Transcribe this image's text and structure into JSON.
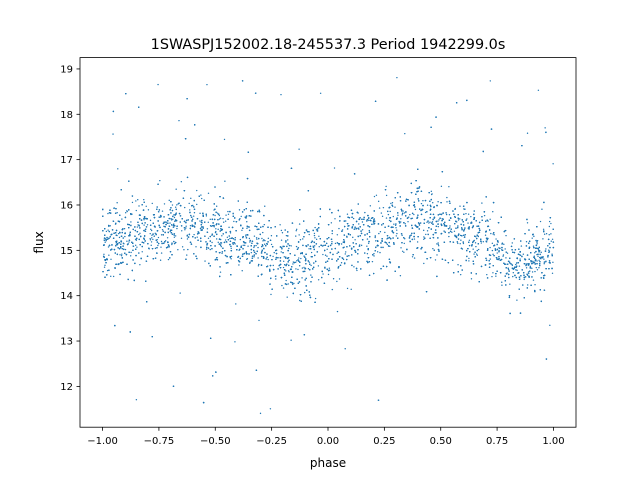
{
  "chart_data": {
    "type": "scatter",
    "title": "1SWASPJ152002.18-245537.3 Period 1942299.0s",
    "xlabel": "phase",
    "ylabel": "flux",
    "xlim": [
      -1.1,
      1.1
    ],
    "ylim": [
      11.1,
      19.25
    ],
    "x_ticks": [
      -1.0,
      -0.75,
      -0.5,
      -0.25,
      0.0,
      0.25,
      0.5,
      0.75,
      1.0
    ],
    "x_tick_labels": [
      "−1.00",
      "−0.75",
      "−0.50",
      "−0.25",
      "0.00",
      "0.25",
      "0.50",
      "0.75",
      "1.00"
    ],
    "y_ticks": [
      12,
      13,
      14,
      15,
      16,
      17,
      18,
      19
    ],
    "y_tick_labels": [
      "12",
      "13",
      "14",
      "15",
      "16",
      "17",
      "18",
      "19"
    ],
    "grid": false,
    "legend": "none",
    "marker_color": "#1f77b4",
    "series": [
      {
        "description_of_density": "dense band of points",
        "x": [
          -1.0,
          -0.9,
          -0.8,
          -0.7,
          -0.65,
          -0.6,
          -0.55,
          -0.5,
          -0.4,
          -0.3,
          -0.25,
          -0.2,
          -0.15,
          -0.1,
          -0.05,
          0.0,
          0.05,
          0.1,
          0.2,
          0.25,
          0.3,
          0.35,
          0.4,
          0.45,
          0.5,
          0.6,
          0.7,
          0.75,
          0.8,
          0.85,
          0.9,
          0.95,
          1.0
        ],
        "y": [
          15.2,
          15.3,
          15.4,
          15.5,
          15.7,
          15.6,
          15.5,
          15.4,
          15.3,
          15.1,
          15.0,
          14.8,
          14.7,
          14.8,
          15.0,
          15.0,
          15.1,
          15.2,
          15.3,
          15.4,
          15.5,
          15.6,
          15.8,
          15.7,
          15.6,
          15.4,
          15.2,
          15.0,
          14.8,
          14.7,
          14.8,
          14.9,
          15.1
        ]
      }
    ]
  }
}
